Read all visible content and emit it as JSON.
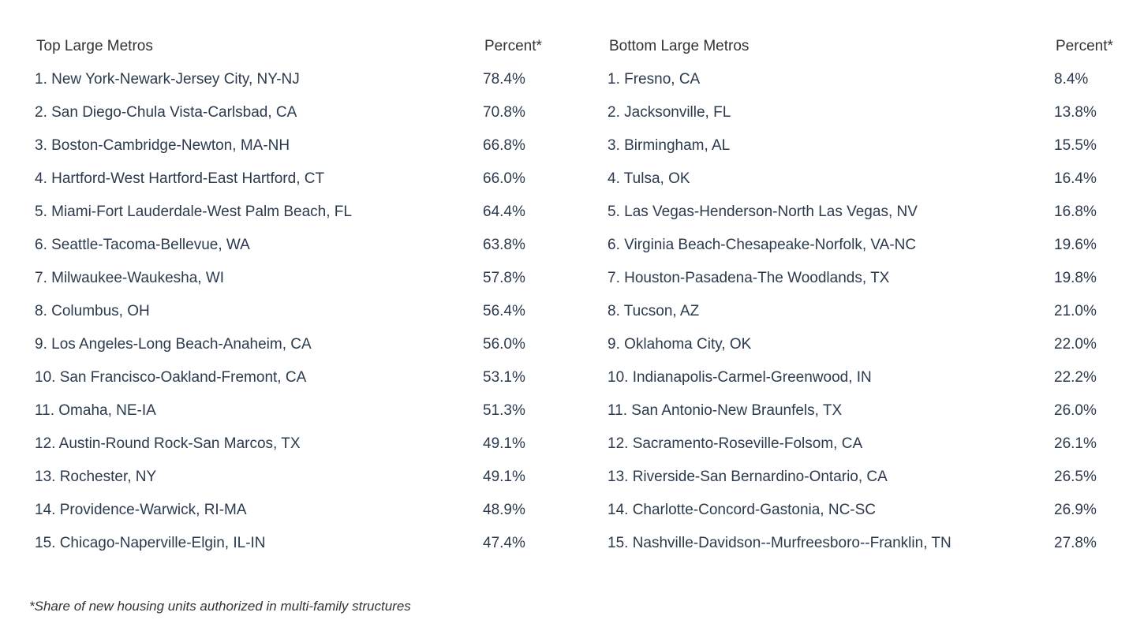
{
  "top": {
    "header": "Top Large Metros",
    "percent_header": "Percent*",
    "rows": [
      {
        "name": "1. New York-Newark-Jersey City, NY-NJ",
        "percent": "78.4%"
      },
      {
        "name": "2. San Diego-Chula Vista-Carlsbad, CA",
        "percent": "70.8%"
      },
      {
        "name": "3. Boston-Cambridge-Newton, MA-NH",
        "percent": "66.8%"
      },
      {
        "name": "4. Hartford-West Hartford-East Hartford, CT",
        "percent": "66.0%"
      },
      {
        "name": "5. Miami-Fort Lauderdale-West Palm Beach, FL",
        "percent": "64.4%"
      },
      {
        "name": "6. Seattle-Tacoma-Bellevue, WA",
        "percent": "63.8%"
      },
      {
        "name": "7. Milwaukee-Waukesha, WI",
        "percent": "57.8%"
      },
      {
        "name": "8. Columbus, OH",
        "percent": "56.4%"
      },
      {
        "name": "9. Los Angeles-Long Beach-Anaheim, CA",
        "percent": "56.0%"
      },
      {
        "name": "10. San Francisco-Oakland-Fremont, CA",
        "percent": "53.1%"
      },
      {
        "name": "11. Omaha, NE-IA",
        "percent": "51.3%"
      },
      {
        "name": "12. Austin-Round Rock-San Marcos, TX",
        "percent": "49.1%"
      },
      {
        "name": "13. Rochester, NY",
        "percent": "49.1%"
      },
      {
        "name": "14. Providence-Warwick, RI-MA",
        "percent": "48.9%"
      },
      {
        "name": "15. Chicago-Naperville-Elgin, IL-IN",
        "percent": "47.4%"
      }
    ]
  },
  "bottom": {
    "header": "Bottom Large Metros",
    "percent_header": "Percent*",
    "rows": [
      {
        "name": "1. Fresno, CA",
        "percent": "8.4%"
      },
      {
        "name": "2. Jacksonville, FL",
        "percent": "13.8%"
      },
      {
        "name": "3. Birmingham, AL",
        "percent": "15.5%"
      },
      {
        "name": "4. Tulsa, OK",
        "percent": "16.4%"
      },
      {
        "name": "5. Las Vegas-Henderson-North Las Vegas, NV",
        "percent": "16.8%"
      },
      {
        "name": "6. Virginia Beach-Chesapeake-Norfolk, VA-NC",
        "percent": "19.6%"
      },
      {
        "name": "7. Houston-Pasadena-The Woodlands, TX",
        "percent": "19.8%"
      },
      {
        "name": "8. Tucson, AZ",
        "percent": "21.0%"
      },
      {
        "name": "9. Oklahoma City, OK",
        "percent": "22.0%"
      },
      {
        "name": "10. Indianapolis-Carmel-Greenwood, IN",
        "percent": "22.2%"
      },
      {
        "name": "11. San Antonio-New Braunfels, TX",
        "percent": "26.0%"
      },
      {
        "name": "12. Sacramento-Roseville-Folsom, CA",
        "percent": "26.1%"
      },
      {
        "name": "13. Riverside-San Bernardino-Ontario, CA",
        "percent": "26.5%"
      },
      {
        "name": "14. Charlotte-Concord-Gastonia, NC-SC",
        "percent": "26.9%"
      },
      {
        "name": "15. Nashville-Davidson--Murfreesboro--Franklin, TN",
        "percent": "27.8%"
      }
    ]
  },
  "footnote": "*Share of new housing units authorized in multi-family structures"
}
